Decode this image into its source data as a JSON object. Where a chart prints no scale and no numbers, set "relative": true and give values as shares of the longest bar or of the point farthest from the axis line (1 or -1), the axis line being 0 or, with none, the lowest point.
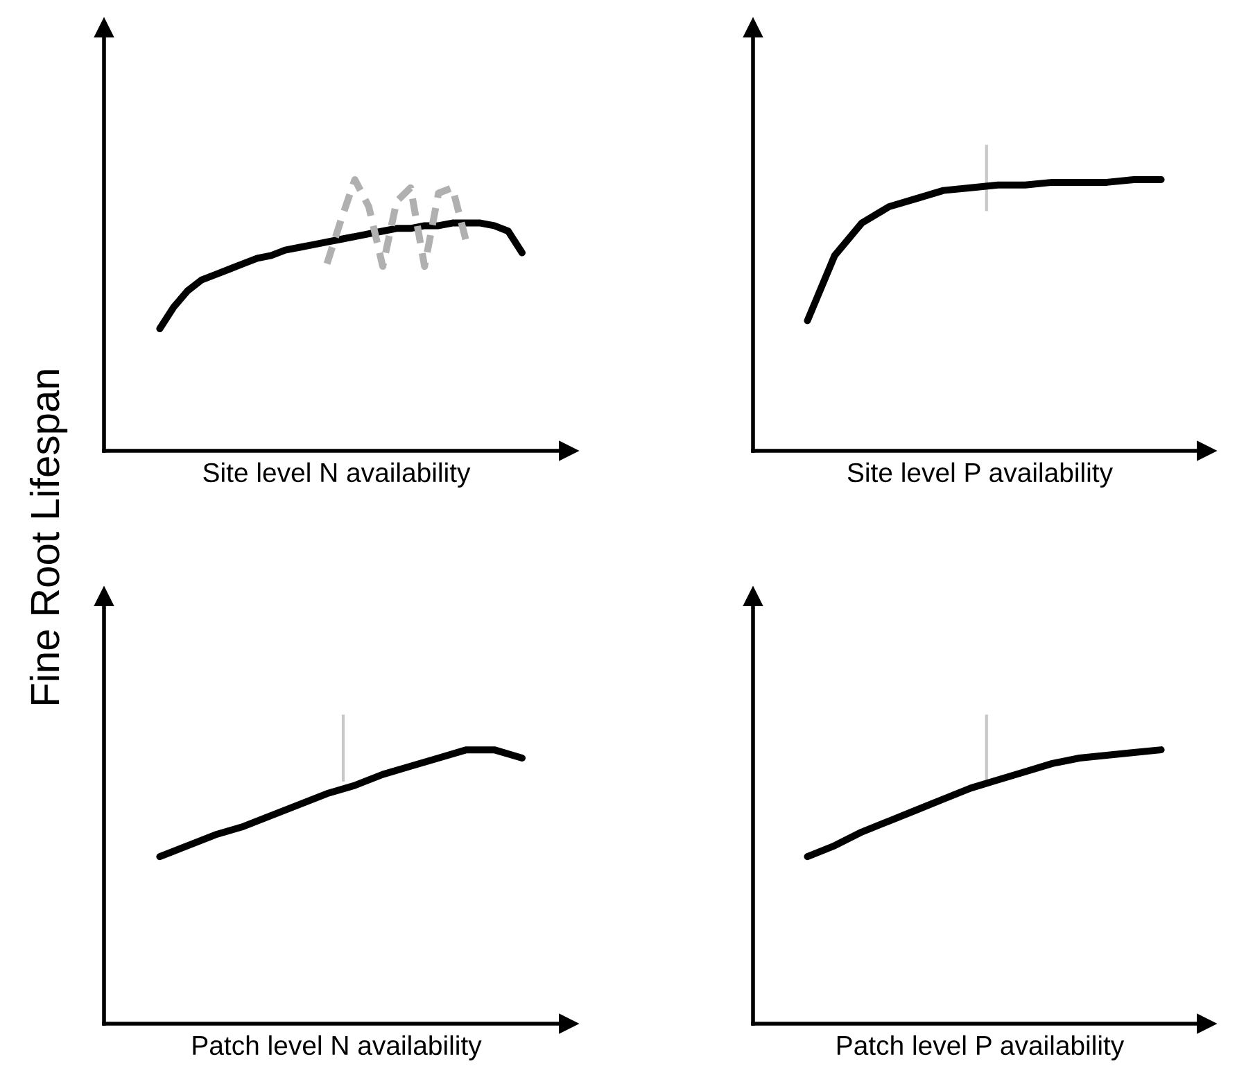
{
  "chart_data": [
    {
      "type": "line",
      "relative": true,
      "xlabel": "Site level N availability",
      "ylabel": "Fine Root Lifespan",
      "categories": [
        null,
        null,
        null,
        null,
        null,
        null,
        null,
        null,
        null,
        null,
        null,
        null,
        null,
        null,
        null,
        null,
        null,
        null,
        null,
        null,
        null,
        null,
        null,
        null,
        null,
        null,
        null
      ],
      "series": [
        {
          "color": "#000000",
          "line_style": "solid",
          "values": [
            0.45,
            0.53,
            0.59,
            0.63,
            0.65,
            0.67,
            0.69,
            0.71,
            0.72,
            0.74,
            0.75,
            0.76,
            0.77,
            0.78,
            0.79,
            0.8,
            0.81,
            0.82,
            0.82,
            0.83,
            0.83,
            0.84,
            0.84,
            0.84,
            0.83,
            0.81,
            0.73
          ]
        },
        {
          "color": "#b0b0b0",
          "line_style": "dashed",
          "values": [
            null,
            null,
            null,
            null,
            null,
            null,
            null,
            null,
            null,
            null,
            null,
            null,
            0.69,
            0.85,
            1.0,
            0.9,
            0.68,
            0.92,
            0.97,
            0.68,
            0.95,
            0.97,
            0.77,
            null,
            null,
            null,
            null
          ]
        }
      ]
    },
    {
      "type": "line",
      "relative": true,
      "xlabel": "Site level P availability",
      "categories": [
        null,
        null,
        null,
        null,
        null,
        null,
        null,
        null,
        null,
        null,
        null,
        null,
        null,
        null
      ],
      "series": [
        {
          "color": "#000000",
          "line_style": "solid",
          "values": [
            0.48,
            0.72,
            0.84,
            0.9,
            0.93,
            0.96,
            0.97,
            0.98,
            0.98,
            0.99,
            0.99,
            0.99,
            1.0,
            1.0
          ]
        }
      ]
    },
    {
      "type": "line",
      "relative": true,
      "xlabel": "Patch level N availability",
      "categories": [
        null,
        null,
        null,
        null,
        null,
        null,
        null,
        null,
        null,
        null,
        null,
        null,
        null,
        null
      ],
      "series": [
        {
          "color": "#000000",
          "line_style": "solid",
          "values": [
            0.61,
            0.65,
            0.69,
            0.72,
            0.76,
            0.8,
            0.84,
            0.87,
            0.91,
            0.94,
            0.97,
            1.0,
            1.0,
            0.97
          ]
        }
      ]
    },
    {
      "type": "line",
      "relative": true,
      "xlabel": "Patch level P availability",
      "categories": [
        null,
        null,
        null,
        null,
        null,
        null,
        null,
        null,
        null,
        null,
        null,
        null,
        null,
        null
      ],
      "series": [
        {
          "color": "#000000",
          "line_style": "solid",
          "values": [
            0.61,
            0.65,
            0.7,
            0.74,
            0.78,
            0.82,
            0.86,
            0.89,
            0.92,
            0.95,
            0.97,
            0.98,
            0.99,
            1.0
          ]
        }
      ]
    }
  ]
}
